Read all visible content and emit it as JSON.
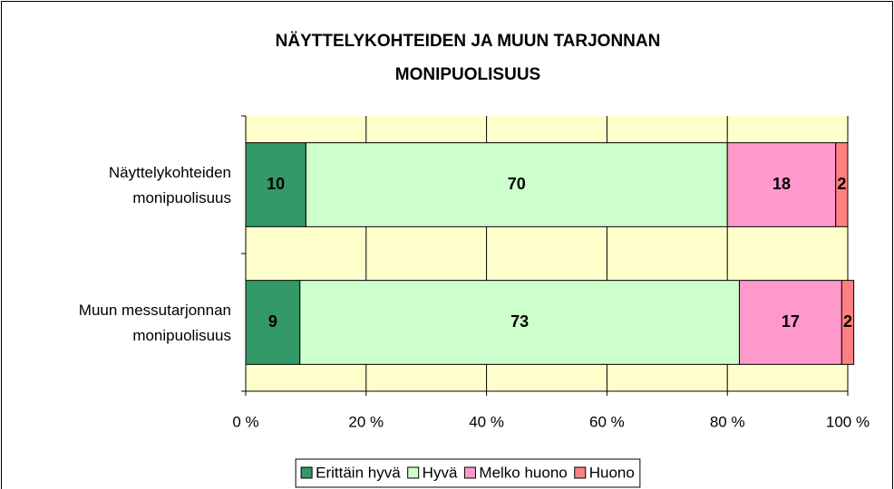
{
  "chart_data": {
    "type": "bar",
    "title": [
      "NÄYTTELYKOHTEIDEN JA MUUN TARJONNAN",
      "MONIPUOLISUUS"
    ],
    "orientation": "horizontal",
    "stacked": true,
    "categories": [
      "Näyttelykohteiden monipuolisuus",
      "Muun messutarjonnan monipuolisuus"
    ],
    "series": [
      {
        "name": "Erittäin hyvä",
        "color": "#339966",
        "values": [
          10,
          9
        ]
      },
      {
        "name": "Hyvä",
        "color": "#ccffcc",
        "values": [
          70,
          73
        ]
      },
      {
        "name": "Melko huono",
        "color": "#ff99cc",
        "values": [
          18,
          17
        ]
      },
      {
        "name": "Huono",
        "color": "#ff8080",
        "values": [
          2,
          2
        ]
      }
    ],
    "xlim": [
      0,
      100
    ],
    "xticks": [
      {
        "value": 0,
        "label": "0 %"
      },
      {
        "value": 20,
        "label": "20 %"
      },
      {
        "value": 40,
        "label": "40 %"
      },
      {
        "value": 60,
        "label": "60 %"
      },
      {
        "value": 80,
        "label": "80 %"
      },
      {
        "value": 100,
        "label": "100 %"
      }
    ],
    "grid": true,
    "legend": "bottom",
    "plot_background": "#ffffcc"
  }
}
